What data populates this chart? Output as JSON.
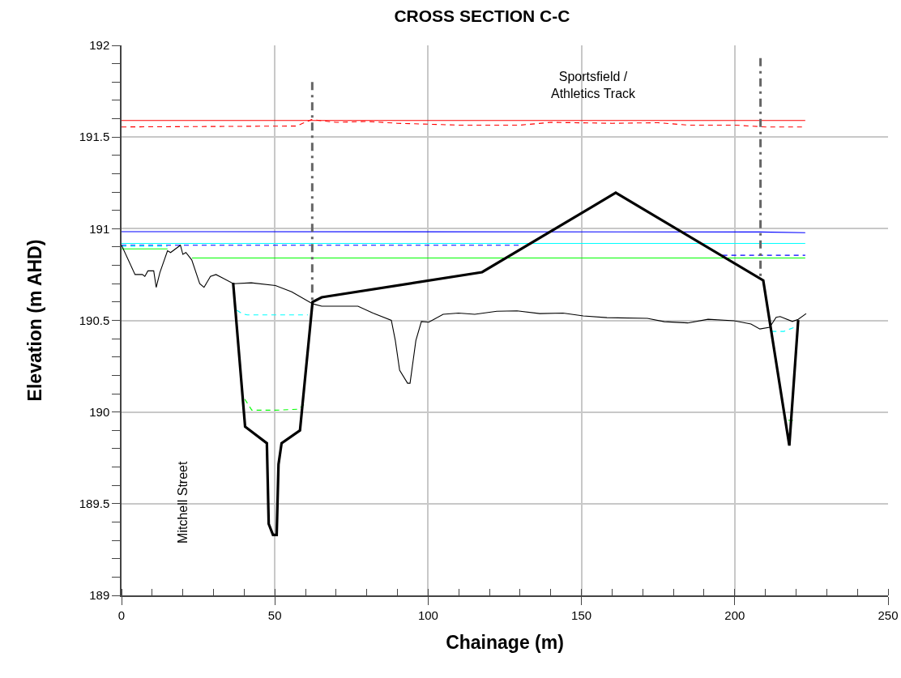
{
  "chart_data": {
    "type": "line",
    "title": "CROSS SECTION C-C",
    "xlabel": "Chainage (m)",
    "ylabel": "Elevation (m AHD)",
    "xlim": [
      0,
      250
    ],
    "xticks": [
      0,
      50,
      100,
      150,
      200,
      250
    ],
    "ylim": [
      189,
      192
    ],
    "yticks": [
      189,
      189.5,
      190,
      190.5,
      191,
      191.5,
      192
    ],
    "grid": true,
    "marker": "none",
    "annotations": [
      "Sportsfield /\nAthletics Track",
      "Mitchell Street"
    ],
    "series": [
      {
        "color": "#ff0000",
        "line_style": "solid",
        "x": [
          0,
          223
        ],
        "values": [
          191.59,
          191.59
        ]
      },
      {
        "color": "#ff0000",
        "line_style": "dashed",
        "x": [
          0,
          57,
          62,
          70,
          80,
          90,
          110,
          130,
          140,
          160,
          175,
          185,
          200,
          210,
          223
        ],
        "values": [
          191.555,
          191.56,
          191.595,
          191.58,
          191.585,
          191.575,
          191.565,
          191.565,
          191.58,
          191.575,
          191.578,
          191.565,
          191.565,
          191.555,
          191.555
        ]
      },
      {
        "color": "#0000ff",
        "line_style": "solid",
        "x": [
          0,
          208,
          223
        ],
        "values": [
          190.984,
          190.982,
          190.978
        ]
      },
      {
        "color": "#00ffff",
        "line_style": "solid",
        "x": [
          0,
          223
        ],
        "values": [
          190.92,
          190.92
        ]
      },
      {
        "color": "#0000ff",
        "line_style": "dashed",
        "x": [
          0,
          130,
          131,
          196,
          223
        ],
        "values": [
          190.91,
          190.91,
          null,
          190.855,
          190.855
        ]
      },
      {
        "color": "#00ff00",
        "line_style": "solid",
        "x": [
          0,
          15,
          16,
          23,
          223
        ],
        "values": [
          190.89,
          190.89,
          null,
          190.84,
          190.84
        ]
      },
      {
        "color": "#00ffff",
        "line_style": "dashed",
        "x": [
          0,
          15,
          16,
          37.6,
          39.5,
          41,
          60.8,
          61,
          212,
          216,
          219.9
        ],
        "values": [
          190.905,
          190.905,
          null,
          190.555,
          190.535,
          190.53,
          190.53,
          null,
          190.44,
          190.44,
          190.465
        ]
      },
      {
        "color": "#00ff00",
        "line_style": "dashed",
        "x": [
          40.2,
          42.5,
          50,
          57.5,
          59.5,
          60,
          217.5,
          219
        ],
        "values": [
          190.07,
          190.01,
          190.01,
          190.015,
          190.04,
          null,
          189.955,
          189.955
        ]
      },
      {
        "color": "#000000",
        "line_style": "solid",
        "x": [
          0,
          4.4,
          6.8,
          7.6,
          8.6,
          10.5,
          11.3,
          12.5,
          15,
          16,
          19.2,
          20,
          21,
          22.9,
          25.5,
          26.9,
          29,
          30.8,
          32.5,
          36.5,
          42.3,
          50.2,
          55.5,
          62.4,
          65.3,
          77.1,
          82,
          88,
          89.3,
          90.7,
          93.3,
          94.1,
          96,
          97.8,
          100.2,
          104.9,
          109.9,
          115.2,
          122.4,
          129,
          136.4,
          144,
          150.6,
          158.3,
          171.5,
          177,
          184.7,
          191.3,
          199.8,
          205.3,
          208.2,
          211.4,
          213.5,
          214.8,
          218.8,
          220.7,
          223.3
        ],
        "values": [
          190.91,
          190.75,
          190.75,
          190.74,
          190.77,
          190.77,
          190.68,
          190.76,
          190.88,
          190.87,
          190.91,
          190.86,
          190.87,
          190.83,
          190.7,
          190.68,
          190.74,
          190.75,
          190.735,
          190.7,
          190.705,
          190.69,
          190.656,
          190.59,
          190.577,
          190.577,
          190.54,
          190.5,
          190.39,
          190.228,
          190.157,
          190.157,
          190.39,
          190.494,
          190.49,
          190.533,
          190.54,
          190.533,
          190.55,
          190.552,
          190.537,
          190.54,
          190.524,
          190.515,
          190.511,
          190.493,
          190.486,
          190.506,
          190.498,
          190.48,
          190.453,
          190.462,
          190.517,
          190.521,
          190.494,
          190.506,
          190.537
        ]
      },
      {
        "color": "#000000",
        "line_style": "solid",
        "x": [
          36.4,
          40.3,
          47.4,
          48,
          49.4,
          50.6,
          51.2,
          52.2,
          58.2,
          62.3,
          65.3,
          117.6,
          161.2,
          209.3,
          217.8,
          220.7
        ],
        "values": [
          190.705,
          189.92,
          189.83,
          189.39,
          189.33,
          189.33,
          189.715,
          189.83,
          189.9,
          190.6,
          190.626,
          190.763,
          191.196,
          190.718,
          189.817,
          190.502
        ]
      },
      {
        "color": "#666666",
        "line_style": "dashdot",
        "x": [
          62.2,
          62.2
        ],
        "values": [
          191.8,
          190.6
        ]
      },
      {
        "color": "#666666",
        "line_style": "dashdot",
        "x": [
          208.4,
          208.4
        ],
        "values": [
          191.93,
          190.72
        ]
      }
    ]
  }
}
